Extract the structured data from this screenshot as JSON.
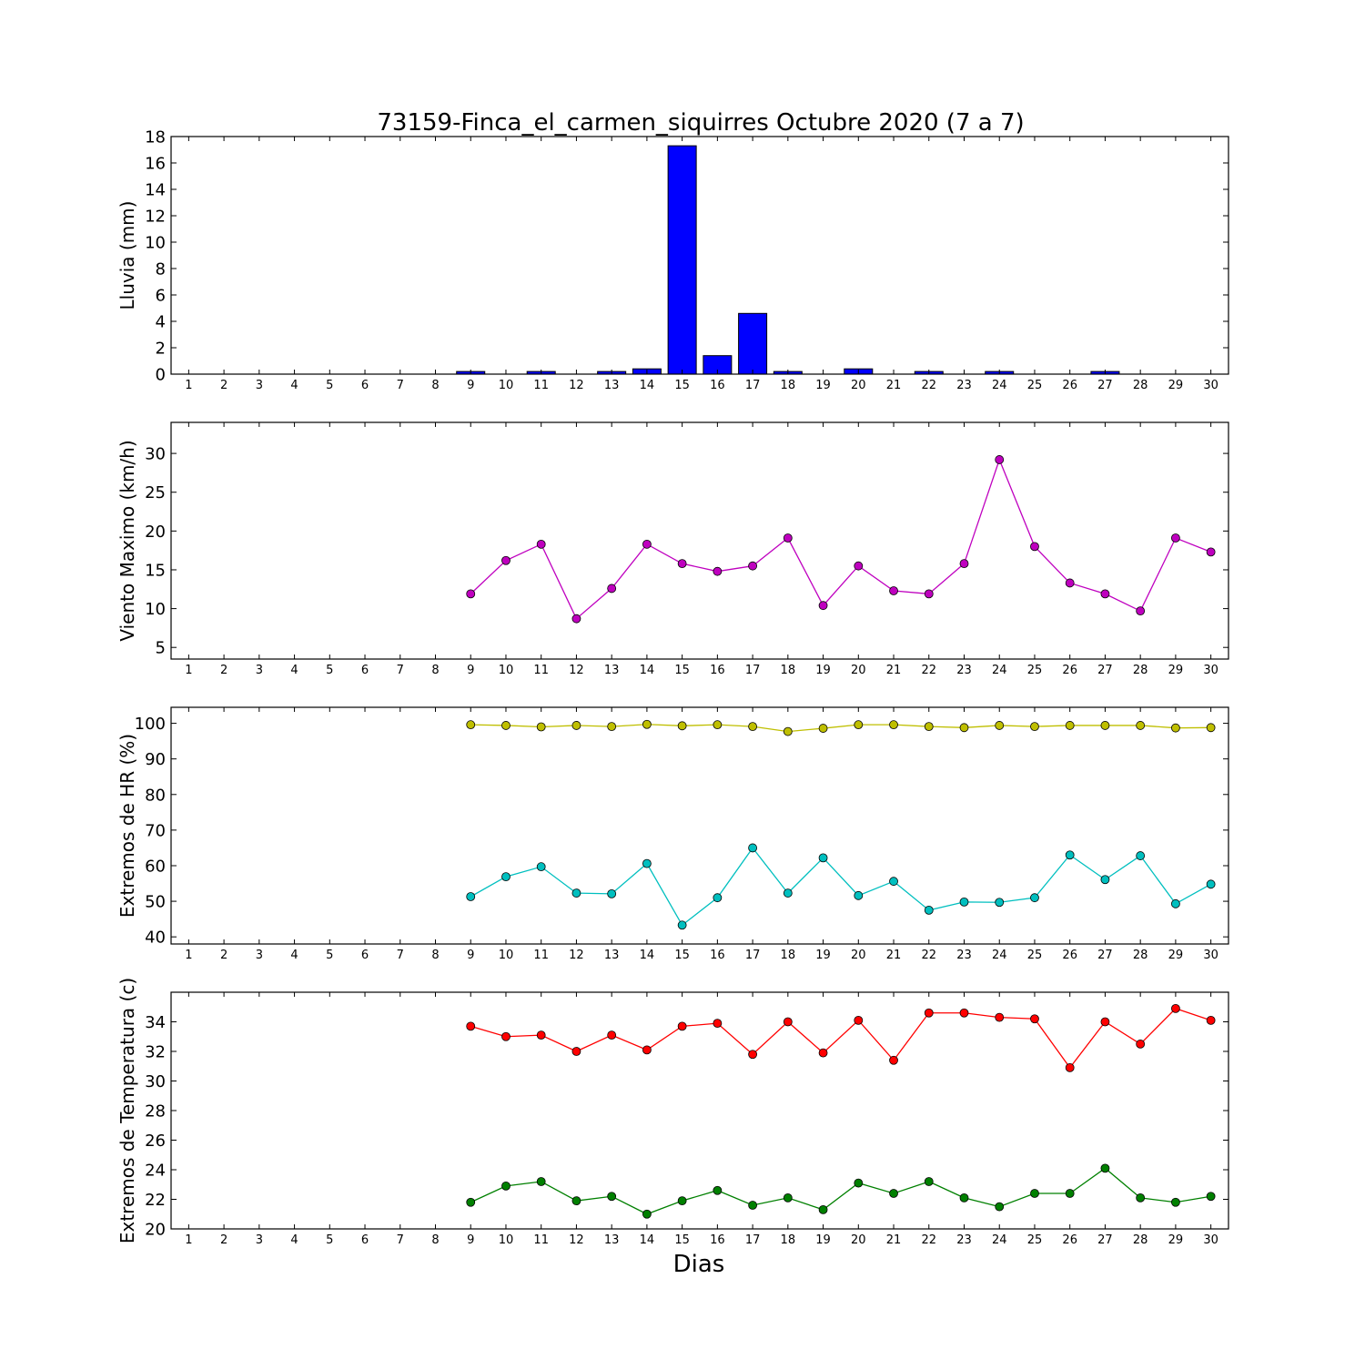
{
  "chart_data": {
    "title": "73159-Finca_el_carmen_siquirres Octubre 2020  (7 a 7)",
    "xlabel": "Dias",
    "days": [
      1,
      2,
      3,
      4,
      5,
      6,
      7,
      8,
      9,
      10,
      11,
      12,
      13,
      14,
      15,
      16,
      17,
      18,
      19,
      20,
      21,
      22,
      23,
      24,
      25,
      26,
      27,
      28,
      29,
      30
    ],
    "panels": [
      {
        "id": "lluvia",
        "type": "bar",
        "ylabel": "Lluvia (mm)",
        "ylim": [
          0,
          18
        ],
        "yticks": [
          0,
          2,
          4,
          6,
          8,
          10,
          12,
          14,
          16,
          18
        ],
        "series": [
          {
            "color": "#0000ff",
            "x": [
              9,
              10,
              11,
              12,
              13,
              14,
              15,
              16,
              17,
              18,
              19,
              20,
              21,
              22,
              23,
              24,
              25,
              26,
              27,
              28,
              29,
              30
            ],
            "values": [
              0.2,
              0,
              0.2,
              0,
              0.2,
              0.4,
              17.3,
              1.4,
              4.6,
              0.2,
              0,
              0.4,
              0,
              0.2,
              0,
              0.2,
              0,
              0,
              0.2,
              0,
              0,
              0
            ]
          }
        ]
      },
      {
        "id": "viento",
        "type": "line",
        "ylabel": "Viento Maximo (km/h)",
        "ylim": [
          3.5,
          34
        ],
        "yticks": [
          5,
          10,
          15,
          20,
          25,
          30
        ],
        "series": [
          {
            "color": "#bf00bf",
            "x": [
              9,
              10,
              11,
              12,
              13,
              14,
              15,
              16,
              17,
              18,
              19,
              20,
              21,
              22,
              23,
              24,
              25,
              26,
              27,
              28,
              29,
              30
            ],
            "values": [
              11.9,
              16.2,
              18.3,
              8.7,
              12.6,
              18.3,
              15.8,
              14.8,
              15.5,
              19.1,
              10.4,
              15.5,
              12.3,
              11.9,
              15.8,
              29.2,
              18.0,
              13.3,
              11.9,
              9.7,
              19.1,
              17.3
            ]
          }
        ]
      },
      {
        "id": "hr",
        "type": "line",
        "ylabel": "Extremos de HR (%)",
        "ylim": [
          38,
          104.5
        ],
        "yticks": [
          40,
          50,
          60,
          70,
          80,
          90,
          100
        ],
        "series": [
          {
            "color": "#bfbf00",
            "x": [
              9,
              10,
              11,
              12,
              13,
              14,
              15,
              16,
              17,
              18,
              19,
              20,
              21,
              22,
              23,
              24,
              25,
              26,
              27,
              28,
              29,
              30
            ],
            "values": [
              99.6,
              99.4,
              99.0,
              99.4,
              99.1,
              99.7,
              99.3,
              99.6,
              99.1,
              97.7,
              98.6,
              99.6,
              99.6,
              99.1,
              98.8,
              99.4,
              99.1,
              99.4,
              99.4,
              99.4,
              98.7,
              98.8
            ]
          },
          {
            "color": "#00bfbf",
            "x": [
              9,
              10,
              11,
              12,
              13,
              14,
              15,
              16,
              17,
              18,
              19,
              20,
              21,
              22,
              23,
              24,
              25,
              26,
              27,
              28,
              29,
              30
            ],
            "values": [
              51.3,
              56.9,
              59.7,
              52.3,
              52.1,
              60.6,
              43.3,
              51.0,
              65.0,
              52.3,
              62.2,
              51.6,
              55.6,
              47.5,
              49.8,
              49.7,
              51.0,
              63.0,
              56.1,
              62.8,
              49.3,
              54.8
            ]
          }
        ]
      },
      {
        "id": "temp",
        "type": "line",
        "ylabel": "Extremos de Temperatura (c)",
        "ylim": [
          20,
          36
        ],
        "yticks": [
          20,
          22,
          24,
          26,
          28,
          30,
          32,
          34
        ],
        "series": [
          {
            "color": "#ff0000",
            "x": [
              9,
              10,
              11,
              12,
              13,
              14,
              15,
              16,
              17,
              18,
              19,
              20,
              21,
              22,
              23,
              24,
              25,
              26,
              27,
              28,
              29,
              30
            ],
            "values": [
              33.7,
              33.0,
              33.1,
              32.0,
              33.1,
              32.1,
              33.7,
              33.9,
              31.8,
              34.0,
              31.9,
              34.1,
              31.4,
              34.6,
              34.6,
              34.3,
              34.2,
              30.9,
              34.0,
              32.5,
              34.9,
              34.1
            ]
          },
          {
            "color": "#008000",
            "x": [
              9,
              10,
              11,
              12,
              13,
              14,
              15,
              16,
              17,
              18,
              19,
              20,
              21,
              22,
              23,
              24,
              25,
              26,
              27,
              28,
              29,
              30
            ],
            "values": [
              21.8,
              22.9,
              23.2,
              21.9,
              22.2,
              21.0,
              21.9,
              22.6,
              21.6,
              22.1,
              21.3,
              23.1,
              22.4,
              23.2,
              22.1,
              21.5,
              22.4,
              22.4,
              24.1,
              22.1,
              21.8,
              22.2
            ]
          }
        ]
      }
    ]
  }
}
